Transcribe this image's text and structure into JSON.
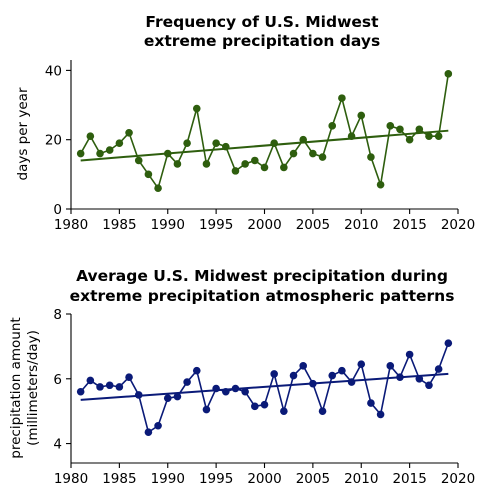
{
  "chart_data": [
    {
      "type": "line",
      "title": [
        "Frequency of U.S. Midwest",
        "extreme precipitation days"
      ],
      "xlabel": "",
      "ylabel": "days per year",
      "xlim": [
        1980,
        2020
      ],
      "ylim": [
        0,
        43
      ],
      "xticks": [
        1980,
        1985,
        1990,
        1995,
        2000,
        2005,
        2010,
        2015,
        2020
      ],
      "yticks": [
        0,
        20,
        40
      ],
      "grid": false,
      "color": "#2e5e0e",
      "x": [
        1981,
        1982,
        1983,
        1984,
        1985,
        1986,
        1987,
        1988,
        1989,
        1990,
        1991,
        1992,
        1993,
        1994,
        1995,
        1996,
        1997,
        1998,
        1999,
        2000,
        2001,
        2002,
        2003,
        2004,
        2005,
        2006,
        2007,
        2008,
        2009,
        2010,
        2011,
        2012,
        2013,
        2014,
        2015,
        2016,
        2017,
        2018,
        2019
      ],
      "series": [
        {
          "values": [
            16,
            21,
            16,
            17,
            19,
            22,
            14,
            10,
            6,
            16,
            13,
            19,
            29,
            13,
            19,
            18,
            11,
            13,
            14,
            12,
            19,
            12,
            16,
            20,
            16,
            15,
            24,
            32,
            21,
            27,
            15,
            7,
            24,
            23,
            20,
            23,
            21,
            21,
            39
          ]
        }
      ],
      "trend": {
        "x": [
          1981,
          2019
        ],
        "y": [
          14.0,
          22.6
        ]
      }
    },
    {
      "type": "line",
      "title": [
        "Average U.S. Midwest precipitation during",
        "extreme precipitation atmospheric patterns"
      ],
      "xlabel": "",
      "ylabel": [
        "precipitation amount",
        "(millimeters/day)"
      ],
      "xlim": [
        1980,
        2020
      ],
      "ylim": [
        3.4,
        8.0
      ],
      "xticks": [
        1980,
        1985,
        1990,
        1995,
        2000,
        2005,
        2010,
        2015,
        2020
      ],
      "yticks": [
        4,
        6,
        8
      ],
      "grid": false,
      "color": "#0a1a78",
      "x": [
        1981,
        1982,
        1983,
        1984,
        1985,
        1986,
        1987,
        1988,
        1989,
        1990,
        1991,
        1992,
        1993,
        1994,
        1995,
        1996,
        1997,
        1998,
        1999,
        2000,
        2001,
        2002,
        2003,
        2004,
        2005,
        2006,
        2007,
        2008,
        2009,
        2010,
        2011,
        2012,
        2013,
        2014,
        2015,
        2016,
        2017,
        2018,
        2019
      ],
      "series": [
        {
          "values": [
            5.6,
            5.95,
            5.75,
            5.8,
            5.75,
            6.05,
            5.5,
            4.35,
            4.55,
            5.4,
            5.45,
            5.9,
            6.25,
            5.05,
            5.7,
            5.6,
            5.7,
            5.6,
            5.15,
            5.2,
            6.15,
            5.0,
            6.1,
            6.4,
            5.85,
            5.0,
            6.1,
            6.25,
            5.9,
            6.45,
            5.25,
            4.9,
            6.4,
            6.05,
            6.75,
            6.0,
            5.8,
            6.3,
            7.1
          ]
        }
      ],
      "trend": {
        "x": [
          1981,
          2019
        ],
        "y": [
          5.35,
          6.15
        ]
      }
    }
  ]
}
